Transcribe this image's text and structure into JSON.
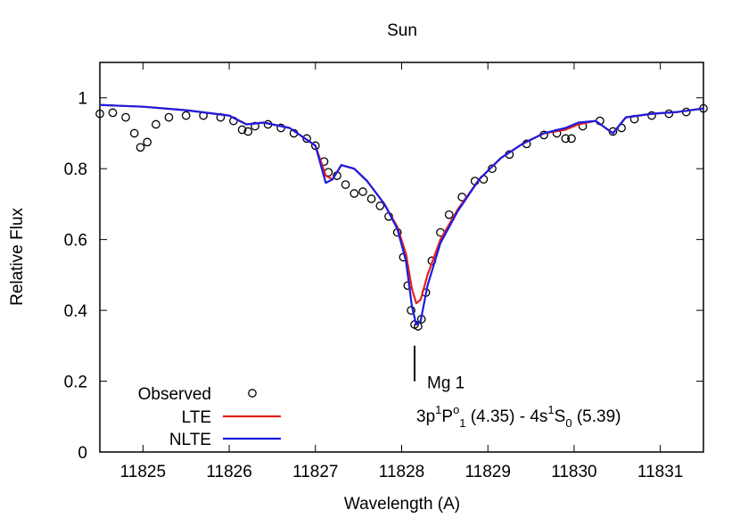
{
  "chart_data": {
    "type": "line",
    "title": "Sun",
    "xlabel": "Wavelength (A)",
    "ylabel": "Relative Flux",
    "xlim": [
      11824.5,
      11831.5
    ],
    "ylim": [
      0,
      1.1
    ],
    "x_ticks": [
      "11825",
      "11826",
      "11827",
      "11828",
      "11829",
      "11830",
      "11831"
    ],
    "x_tick_values": [
      11825,
      11826,
      11827,
      11828,
      11829,
      11830,
      11831
    ],
    "y_ticks": [
      "0",
      "0.2",
      "0.4",
      "0.6",
      "0.8",
      "1"
    ],
    "y_tick_values": [
      0,
      0.2,
      0.4,
      0.6,
      0.8,
      1.0
    ],
    "grid": false,
    "legend_position": "bottom-left",
    "series": [
      {
        "name": "Observed",
        "style": "open-circles",
        "color": "#000000",
        "points": [
          [
            11824.5,
            0.955
          ],
          [
            11824.65,
            0.958
          ],
          [
            11824.8,
            0.945
          ],
          [
            11824.9,
            0.9
          ],
          [
            11824.97,
            0.86
          ],
          [
            11825.05,
            0.875
          ],
          [
            11825.15,
            0.925
          ],
          [
            11825.3,
            0.945
          ],
          [
            11825.5,
            0.95
          ],
          [
            11825.7,
            0.95
          ],
          [
            11825.9,
            0.945
          ],
          [
            11826.05,
            0.935
          ],
          [
            11826.15,
            0.91
          ],
          [
            11826.22,
            0.905
          ],
          [
            11826.3,
            0.92
          ],
          [
            11826.45,
            0.925
          ],
          [
            11826.6,
            0.915
          ],
          [
            11826.75,
            0.9
          ],
          [
            11826.9,
            0.885
          ],
          [
            11827.0,
            0.865
          ],
          [
            11827.1,
            0.82
          ],
          [
            11827.15,
            0.79
          ],
          [
            11827.25,
            0.78
          ],
          [
            11827.35,
            0.755
          ],
          [
            11827.45,
            0.73
          ],
          [
            11827.55,
            0.735
          ],
          [
            11827.65,
            0.715
          ],
          [
            11827.75,
            0.695
          ],
          [
            11827.85,
            0.665
          ],
          [
            11827.95,
            0.62
          ],
          [
            11828.02,
            0.55
          ],
          [
            11828.07,
            0.47
          ],
          [
            11828.11,
            0.4
          ],
          [
            11828.15,
            0.36
          ],
          [
            11828.19,
            0.355
          ],
          [
            11828.23,
            0.375
          ],
          [
            11828.28,
            0.45
          ],
          [
            11828.35,
            0.54
          ],
          [
            11828.45,
            0.62
          ],
          [
            11828.55,
            0.67
          ],
          [
            11828.7,
            0.72
          ],
          [
            11828.85,
            0.765
          ],
          [
            11828.95,
            0.77
          ],
          [
            11829.05,
            0.8
          ],
          [
            11829.25,
            0.84
          ],
          [
            11829.45,
            0.87
          ],
          [
            11829.65,
            0.895
          ],
          [
            11829.8,
            0.9
          ],
          [
            11829.9,
            0.885
          ],
          [
            11829.97,
            0.885
          ],
          [
            11830.1,
            0.92
          ],
          [
            11830.3,
            0.935
          ],
          [
            11830.45,
            0.905
          ],
          [
            11830.55,
            0.915
          ],
          [
            11830.7,
            0.94
          ],
          [
            11830.9,
            0.95
          ],
          [
            11831.1,
            0.955
          ],
          [
            11831.3,
            0.96
          ],
          [
            11831.5,
            0.97
          ]
        ]
      },
      {
        "name": "LTE",
        "style": "line",
        "color": "#e8211d",
        "points": [
          [
            11824.5,
            0.98
          ],
          [
            11825.0,
            0.975
          ],
          [
            11825.5,
            0.965
          ],
          [
            11826.0,
            0.95
          ],
          [
            11826.2,
            0.925
          ],
          [
            11826.4,
            0.93
          ],
          [
            11826.7,
            0.915
          ],
          [
            11827.0,
            0.865
          ],
          [
            11827.12,
            0.78
          ],
          [
            11827.2,
            0.77
          ],
          [
            11827.3,
            0.81
          ],
          [
            11827.45,
            0.8
          ],
          [
            11827.6,
            0.765
          ],
          [
            11827.8,
            0.7
          ],
          [
            11827.95,
            0.635
          ],
          [
            11828.05,
            0.56
          ],
          [
            11828.12,
            0.46
          ],
          [
            11828.17,
            0.42
          ],
          [
            11828.22,
            0.43
          ],
          [
            11828.3,
            0.5
          ],
          [
            11828.45,
            0.6
          ],
          [
            11828.65,
            0.685
          ],
          [
            11828.9,
            0.77
          ],
          [
            11829.15,
            0.83
          ],
          [
            11829.4,
            0.87
          ],
          [
            11829.65,
            0.9
          ],
          [
            11829.9,
            0.91
          ],
          [
            11830.05,
            0.925
          ],
          [
            11830.25,
            0.935
          ],
          [
            11830.45,
            0.9
          ],
          [
            11830.6,
            0.945
          ],
          [
            11830.9,
            0.955
          ],
          [
            11831.2,
            0.96
          ],
          [
            11831.5,
            0.97
          ]
        ]
      },
      {
        "name": "NLTE",
        "style": "line",
        "color": "#1c1ce0",
        "points": [
          [
            11824.5,
            0.98
          ],
          [
            11825.0,
            0.975
          ],
          [
            11825.5,
            0.965
          ],
          [
            11826.0,
            0.95
          ],
          [
            11826.2,
            0.925
          ],
          [
            11826.4,
            0.93
          ],
          [
            11826.7,
            0.915
          ],
          [
            11827.0,
            0.865
          ],
          [
            11827.12,
            0.76
          ],
          [
            11827.2,
            0.77
          ],
          [
            11827.3,
            0.81
          ],
          [
            11827.45,
            0.8
          ],
          [
            11827.6,
            0.765
          ],
          [
            11827.8,
            0.7
          ],
          [
            11827.95,
            0.63
          ],
          [
            11828.05,
            0.54
          ],
          [
            11828.12,
            0.41
          ],
          [
            11828.17,
            0.36
          ],
          [
            11828.22,
            0.37
          ],
          [
            11828.3,
            0.47
          ],
          [
            11828.45,
            0.59
          ],
          [
            11828.65,
            0.68
          ],
          [
            11828.9,
            0.77
          ],
          [
            11829.15,
            0.83
          ],
          [
            11829.4,
            0.87
          ],
          [
            11829.65,
            0.9
          ],
          [
            11829.9,
            0.915
          ],
          [
            11830.05,
            0.93
          ],
          [
            11830.25,
            0.935
          ],
          [
            11830.45,
            0.9
          ],
          [
            11830.6,
            0.945
          ],
          [
            11830.9,
            0.955
          ],
          [
            11831.2,
            0.96
          ],
          [
            11831.5,
            0.97
          ]
        ]
      }
    ],
    "annotations": [
      {
        "name": "Mg 1",
        "marker_x": 11828.15,
        "marker_y_range": [
          0.2,
          0.3
        ]
      },
      {
        "parts": [
          {
            "text": "3p",
            "style": "normal"
          },
          {
            "text": "1",
            "style": "super"
          },
          {
            "text": "P",
            "style": "normal"
          },
          {
            "text": "o",
            "style": "super"
          },
          {
            "text": "1",
            "style": "sub"
          },
          {
            "text": " (4.35) - 4s",
            "style": "normal"
          },
          {
            "text": "1",
            "style": "super"
          },
          {
            "text": "S",
            "style": "normal"
          },
          {
            "text": "0",
            "style": "sub"
          },
          {
            "text": " (5.39)",
            "style": "normal"
          }
        ]
      }
    ]
  }
}
